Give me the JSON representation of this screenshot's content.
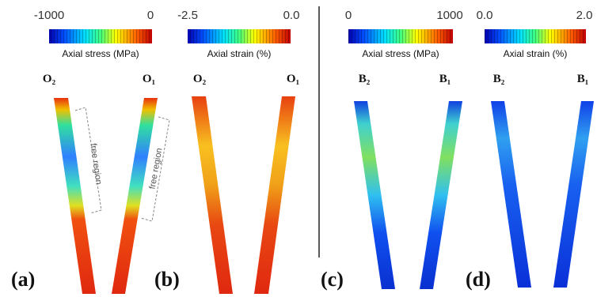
{
  "panels": [
    {
      "label": "(a)",
      "colorbar": {
        "min": "-1000",
        "max": "0",
        "title": "Axial stress (MPa)"
      },
      "struts": [
        "O₂",
        "O₁"
      ],
      "annotations": [
        "free region",
        "free region"
      ]
    },
    {
      "label": "(b)",
      "colorbar": {
        "min": "-2.5",
        "max": "0.0",
        "title": "Axial strain (%)"
      },
      "struts": [
        "O₂",
        "O₁"
      ]
    },
    {
      "label": "(c)",
      "colorbar": {
        "min": "0",
        "max": "1000",
        "title": "Axial stress (MPa)"
      },
      "struts": [
        "B₂",
        "B₁"
      ]
    },
    {
      "label": "(d)",
      "colorbar": {
        "min": "0.0",
        "max": "2.0",
        "title": "Axial strain (%)"
      },
      "struts": [
        "B₂",
        "B₁"
      ]
    }
  ]
}
